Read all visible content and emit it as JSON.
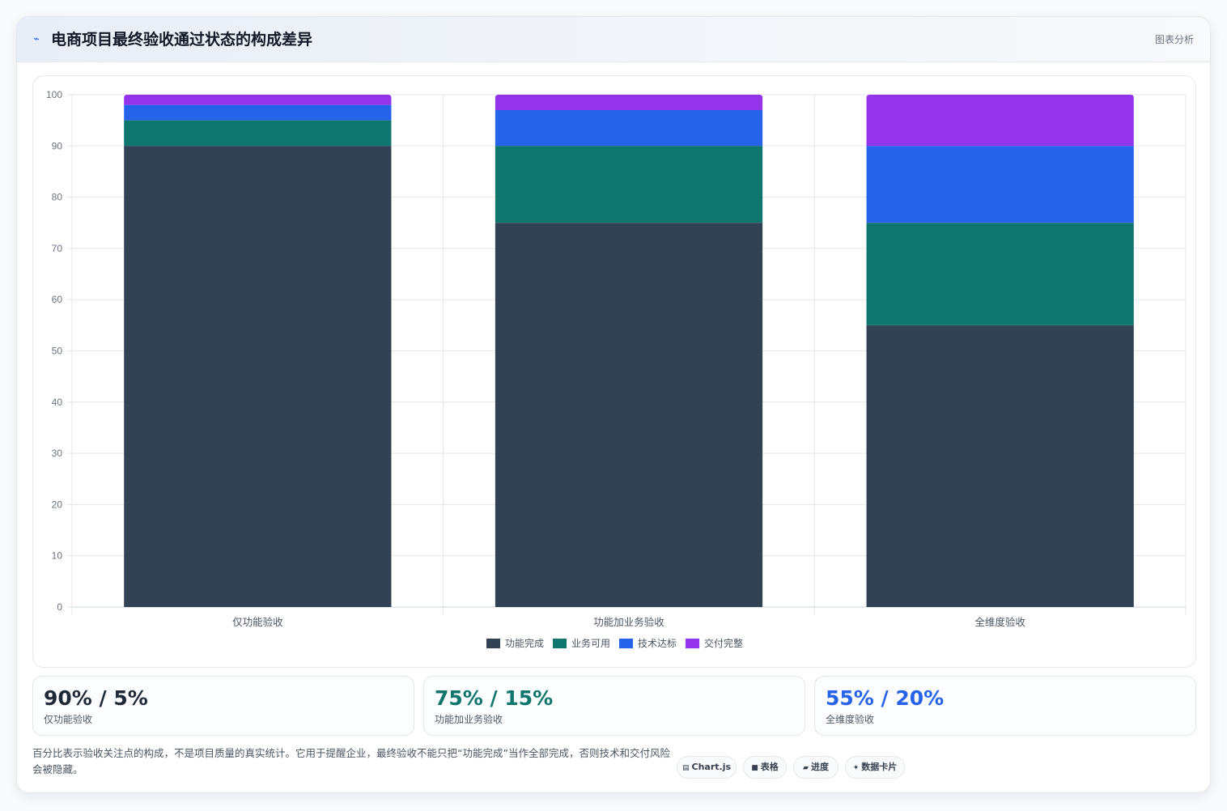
{
  "header": {
    "icon": "line-chart-icon",
    "title": "电商项目最终验收通过状态的构成差异",
    "badge": "图表分析"
  },
  "chart_data": {
    "type": "bar",
    "stacked": true,
    "categories": [
      "仅功能验收",
      "功能加业务验收",
      "全维度验收"
    ],
    "series": [
      {
        "name": "功能完成",
        "color": "#334155",
        "values": [
          90,
          75,
          55
        ]
      },
      {
        "name": "业务可用",
        "color": "#0f766e",
        "values": [
          5,
          15,
          20
        ]
      },
      {
        "name": "技术达标",
        "color": "#2563eb",
        "values": [
          3,
          7,
          15
        ]
      },
      {
        "name": "交付完整",
        "color": "#9333ea",
        "values": [
          2,
          3,
          10
        ]
      }
    ],
    "ylim": [
      0,
      100
    ],
    "yticks": [
      0,
      10,
      20,
      30,
      40,
      50,
      60,
      70,
      80,
      90,
      100
    ],
    "grid": true,
    "legend_position": "bottom"
  },
  "stats": [
    {
      "value": "90% / 5%",
      "label": "仅功能验收",
      "color": "#1f2937"
    },
    {
      "value": "75% / 15%",
      "label": "功能加业务验收",
      "color": "#0f766e"
    },
    {
      "value": "55% / 20%",
      "label": "全维度验收",
      "color": "#2563eb"
    }
  ],
  "footnote": "百分比表示验收关注点的构成，不是项目质量的真实统计。它用于提醒企业，最终验收不能只把“功能完成”当作全部完成，否则技术和交付风险会被隐藏。",
  "pills": [
    {
      "icon": "chart-icon",
      "glyph": "▤",
      "label": "Chart.js"
    },
    {
      "icon": "table-icon",
      "glyph": "■",
      "label": "表格"
    },
    {
      "icon": "progress-icon",
      "glyph": "▰",
      "label": "进度"
    },
    {
      "icon": "sparkle-icon",
      "glyph": "✦",
      "label": "数据卡片"
    }
  ]
}
